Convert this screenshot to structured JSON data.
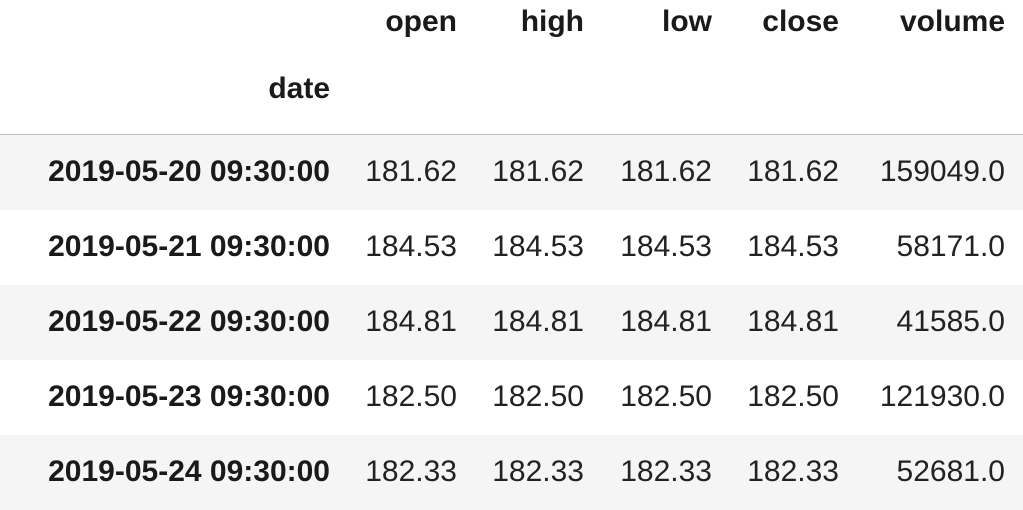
{
  "table": {
    "columns": [
      "open",
      "high",
      "low",
      "close",
      "volume"
    ],
    "index_name": "date",
    "rows": [
      {
        "date": "2019-05-20 09:30:00",
        "open": "181.62",
        "high": "181.62",
        "low": "181.62",
        "close": "181.62",
        "volume": "159049.0"
      },
      {
        "date": "2019-05-21 09:30:00",
        "open": "184.53",
        "high": "184.53",
        "low": "184.53",
        "close": "184.53",
        "volume": "58171.0"
      },
      {
        "date": "2019-05-22 09:30:00",
        "open": "184.81",
        "high": "184.81",
        "low": "184.81",
        "close": "184.81",
        "volume": "41585.0"
      },
      {
        "date": "2019-05-23 09:30:00",
        "open": "182.50",
        "high": "182.50",
        "low": "182.50",
        "close": "182.50",
        "volume": "121930.0"
      },
      {
        "date": "2019-05-24 09:30:00",
        "open": "182.33",
        "high": "182.33",
        "low": "182.33",
        "close": "182.33",
        "volume": "52681.0"
      }
    ]
  }
}
